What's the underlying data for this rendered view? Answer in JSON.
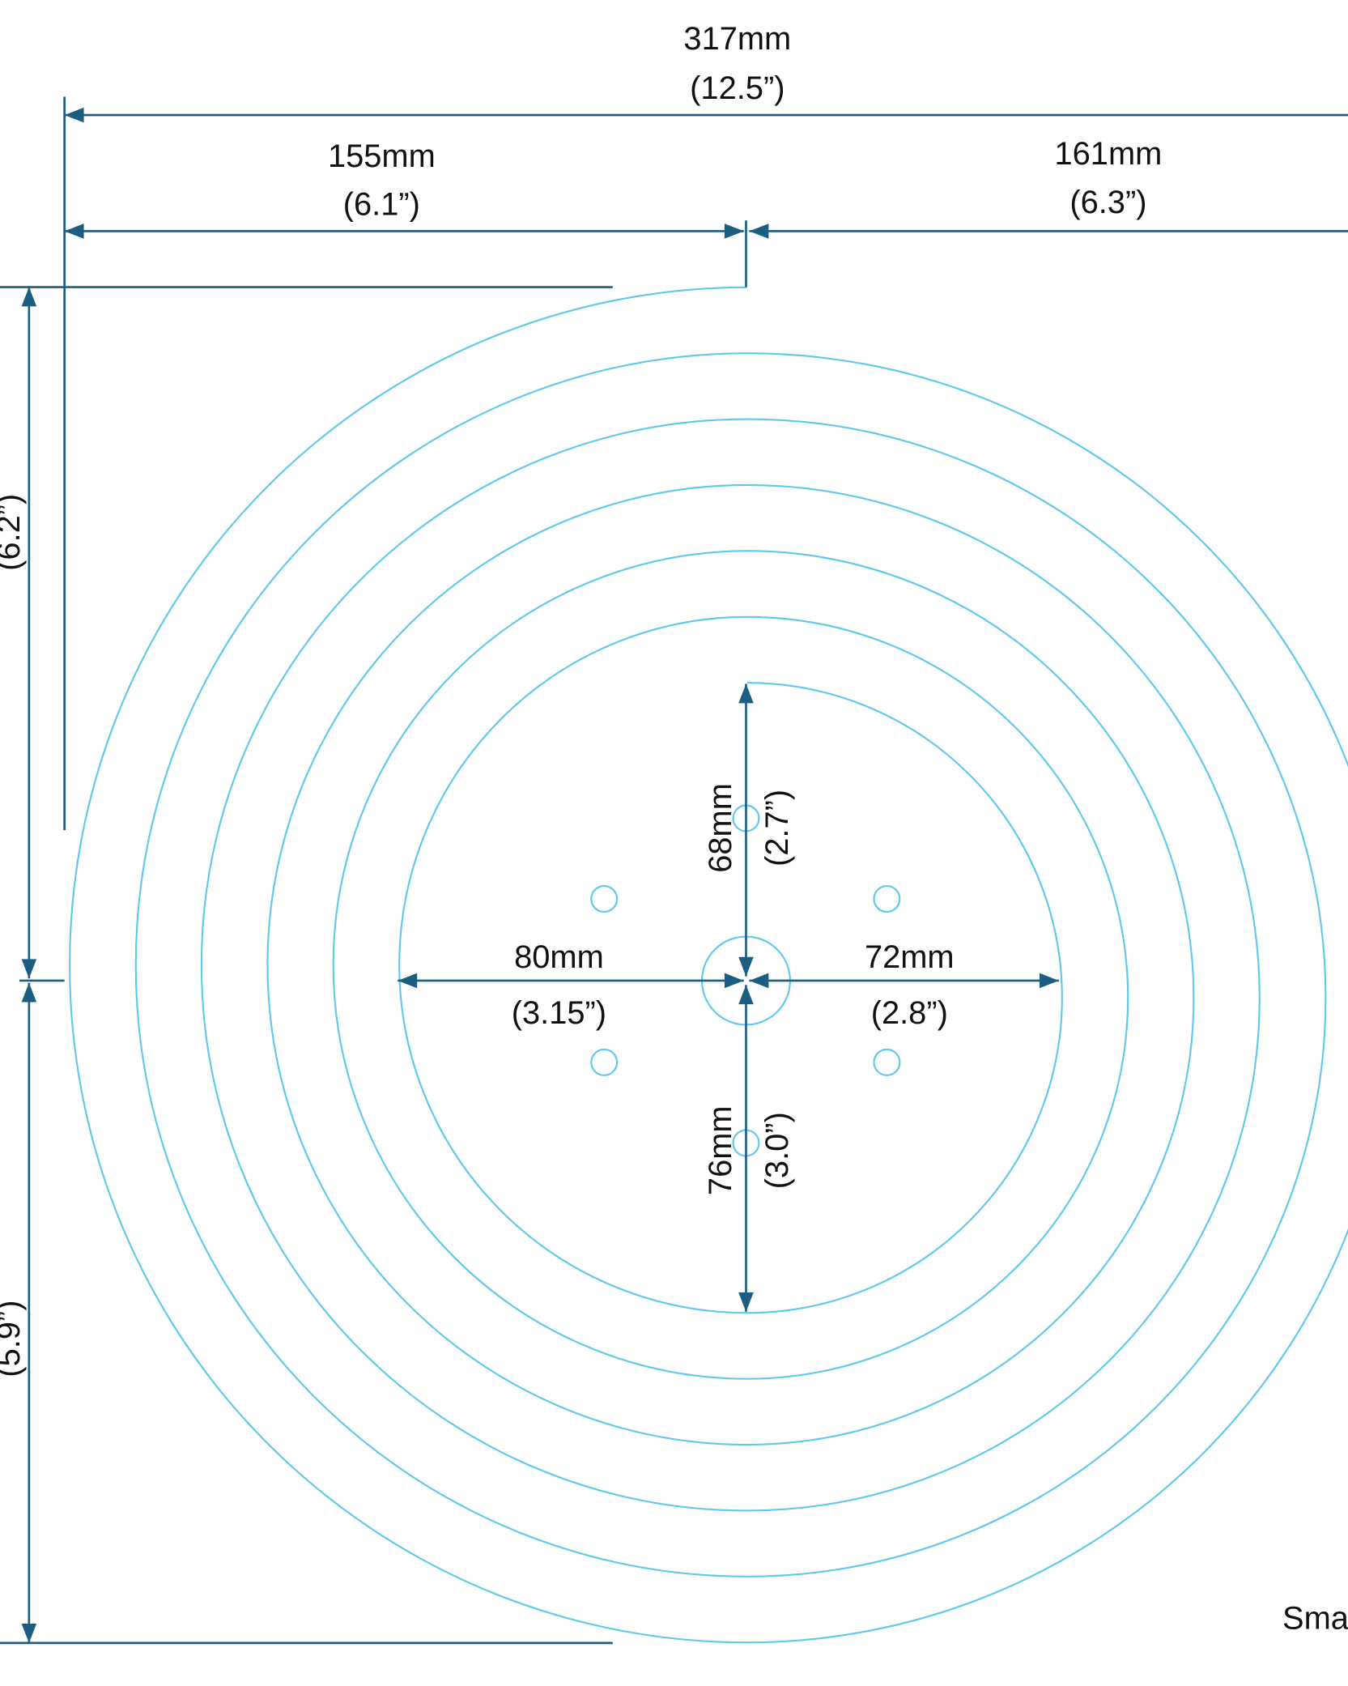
{
  "colors": {
    "dimension_line": "#1b5e82",
    "spiral": "#5fc8ec",
    "text": "#111111"
  },
  "dimensions": {
    "overall_width": {
      "mm": "317mm",
      "in": "(12.5”)"
    },
    "left_width": {
      "mm": "155mm",
      "in": "(6.1”)"
    },
    "right_width": {
      "mm": "161mm",
      "in": "(6.3”)"
    },
    "upper_height": {
      "in": "(6.2”)"
    },
    "lower_height": {
      "in": "(5.9”)"
    },
    "center_left": {
      "mm": "80mm",
      "in": "(3.15”)"
    },
    "center_right": {
      "mm": "72mm",
      "in": "(2.8”)"
    },
    "center_up": {
      "mm": "68mm",
      "in": "(2.7”)"
    },
    "center_down": {
      "mm": "76mm",
      "in": "(3.0”)"
    }
  },
  "corner_text": "Sma"
}
